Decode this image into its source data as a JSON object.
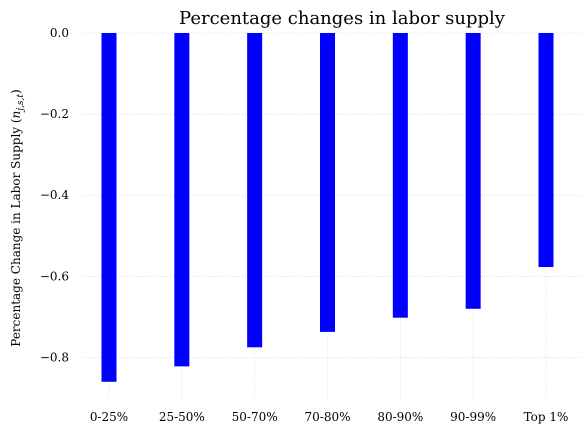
{
  "chart_data": {
    "type": "bar",
    "title": "Percentage changes in labor supply",
    "ylabel_main": "Percentage Change in Labor Supply (",
    "ylabel_math": "n",
    "ylabel_sub": "j,s,t",
    "ylabel_close": ")",
    "xlabel": "",
    "categories": [
      "0-25%",
      "25-50%",
      "50-70%",
      "70-80%",
      "80-90%",
      "90-99%",
      "Top 1%"
    ],
    "values": [
      -0.86,
      -0.822,
      -0.775,
      -0.737,
      -0.702,
      -0.68,
      -0.577
    ],
    "ylim": [
      -0.9,
      0.0
    ],
    "yticks": [
      0.0,
      -0.2,
      -0.4,
      -0.6,
      -0.8
    ],
    "ytick_labels": [
      "0.0",
      "−0.2",
      "−0.4",
      "−0.6",
      "−0.8"
    ],
    "bar_color": "#0000ff",
    "grid": true,
    "legend": "none"
  }
}
